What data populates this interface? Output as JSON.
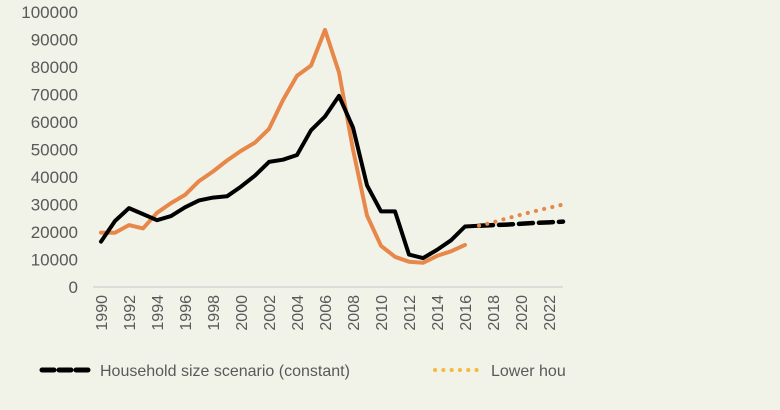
{
  "chart_data": {
    "type": "line",
    "title": "",
    "xlabel": "",
    "ylabel": "",
    "ylim": [
      0,
      100000
    ],
    "y_ticks": [
      "0",
      "10000",
      "20000",
      "30000",
      "40000",
      "50000",
      "60000",
      "70000",
      "80000",
      "90000",
      "100000"
    ],
    "y_tick_values": [
      0,
      10000,
      20000,
      30000,
      40000,
      50000,
      60000,
      70000,
      80000,
      90000,
      100000
    ],
    "xlim": [
      1990,
      2023
    ],
    "x_ticks": [
      "1990",
      "1992",
      "1994",
      "1996",
      "1998",
      "2000",
      "2002",
      "2004",
      "2006",
      "2008",
      "2010",
      "2012",
      "2014",
      "2016",
      "2018",
      "2020",
      "2022"
    ],
    "x_tick_values": [
      1990,
      1992,
      1994,
      1996,
      1998,
      2000,
      2002,
      2004,
      2006,
      2008,
      2010,
      2012,
      2014,
      2016,
      2018,
      2020,
      2022
    ],
    "grid": false,
    "legend_placement": "bottom",
    "series": [
      {
        "name": "Orange historical series",
        "color": "#e8874a",
        "style": "solid",
        "show_in_legend": false,
        "x": [
          1990,
          1991,
          1992,
          1993,
          1994,
          1995,
          1996,
          1997,
          1998,
          1999,
          2000,
          2001,
          2002,
          2003,
          2004,
          2005,
          2006,
          2007,
          2008,
          2009,
          2010,
          2011,
          2012,
          2013,
          2014,
          2015,
          2016
        ],
        "values": [
          19800,
          19700,
          22500,
          21300,
          27000,
          30500,
          33500,
          38500,
          42000,
          46000,
          49500,
          52500,
          57500,
          68000,
          76800,
          80500,
          93500,
          78000,
          50000,
          26000,
          15000,
          11000,
          9200,
          8800,
          11300,
          13000,
          15300
        ]
      },
      {
        "name": "Black historical series",
        "color": "#000000",
        "style": "solid",
        "show_in_legend": false,
        "x": [
          1990,
          1991,
          1992,
          1993,
          1994,
          1995,
          1996,
          1997,
          1998,
          1999,
          2000,
          2001,
          2002,
          2003,
          2004,
          2005,
          2006,
          2007,
          2008,
          2009,
          2010,
          2011,
          2012,
          2013,
          2014,
          2015,
          2016,
          2017
        ],
        "values": [
          16500,
          24000,
          28700,
          26500,
          24300,
          25800,
          29000,
          31500,
          32500,
          33000,
          36500,
          40500,
          45500,
          46300,
          48000,
          57000,
          62000,
          69500,
          58000,
          37000,
          27500,
          27500,
          11800,
          10500,
          13500,
          17000,
          22000,
          22300
        ]
      },
      {
        "name": "Household size scenario (constant)",
        "color": "#000000",
        "style": "dashed",
        "show_in_legend": true,
        "x": [
          2017,
          2018,
          2019,
          2020,
          2021,
          2022,
          2023
        ],
        "values": [
          22300,
          22500,
          22700,
          23000,
          23300,
          23500,
          23800
        ]
      },
      {
        "name": "Lower hou",
        "color": "#e8874a",
        "legend_color": "#f5b841",
        "style": "dotted",
        "show_in_legend": true,
        "x": [
          2017,
          2018,
          2019,
          2020,
          2021,
          2022,
          2023
        ],
        "values": [
          22300,
          23500,
          25000,
          26300,
          27600,
          28800,
          30000
        ]
      }
    ]
  },
  "legend": {
    "items": [
      {
        "label": "Household size scenario (constant)",
        "color": "#000000",
        "style": "dashed"
      },
      {
        "label": "Lower hou",
        "color": "#f5b841",
        "style": "dotted"
      }
    ]
  },
  "colors": {
    "background": "#f1f3e9",
    "axis": "#d0d0d0",
    "tick_text": "#595959"
  }
}
